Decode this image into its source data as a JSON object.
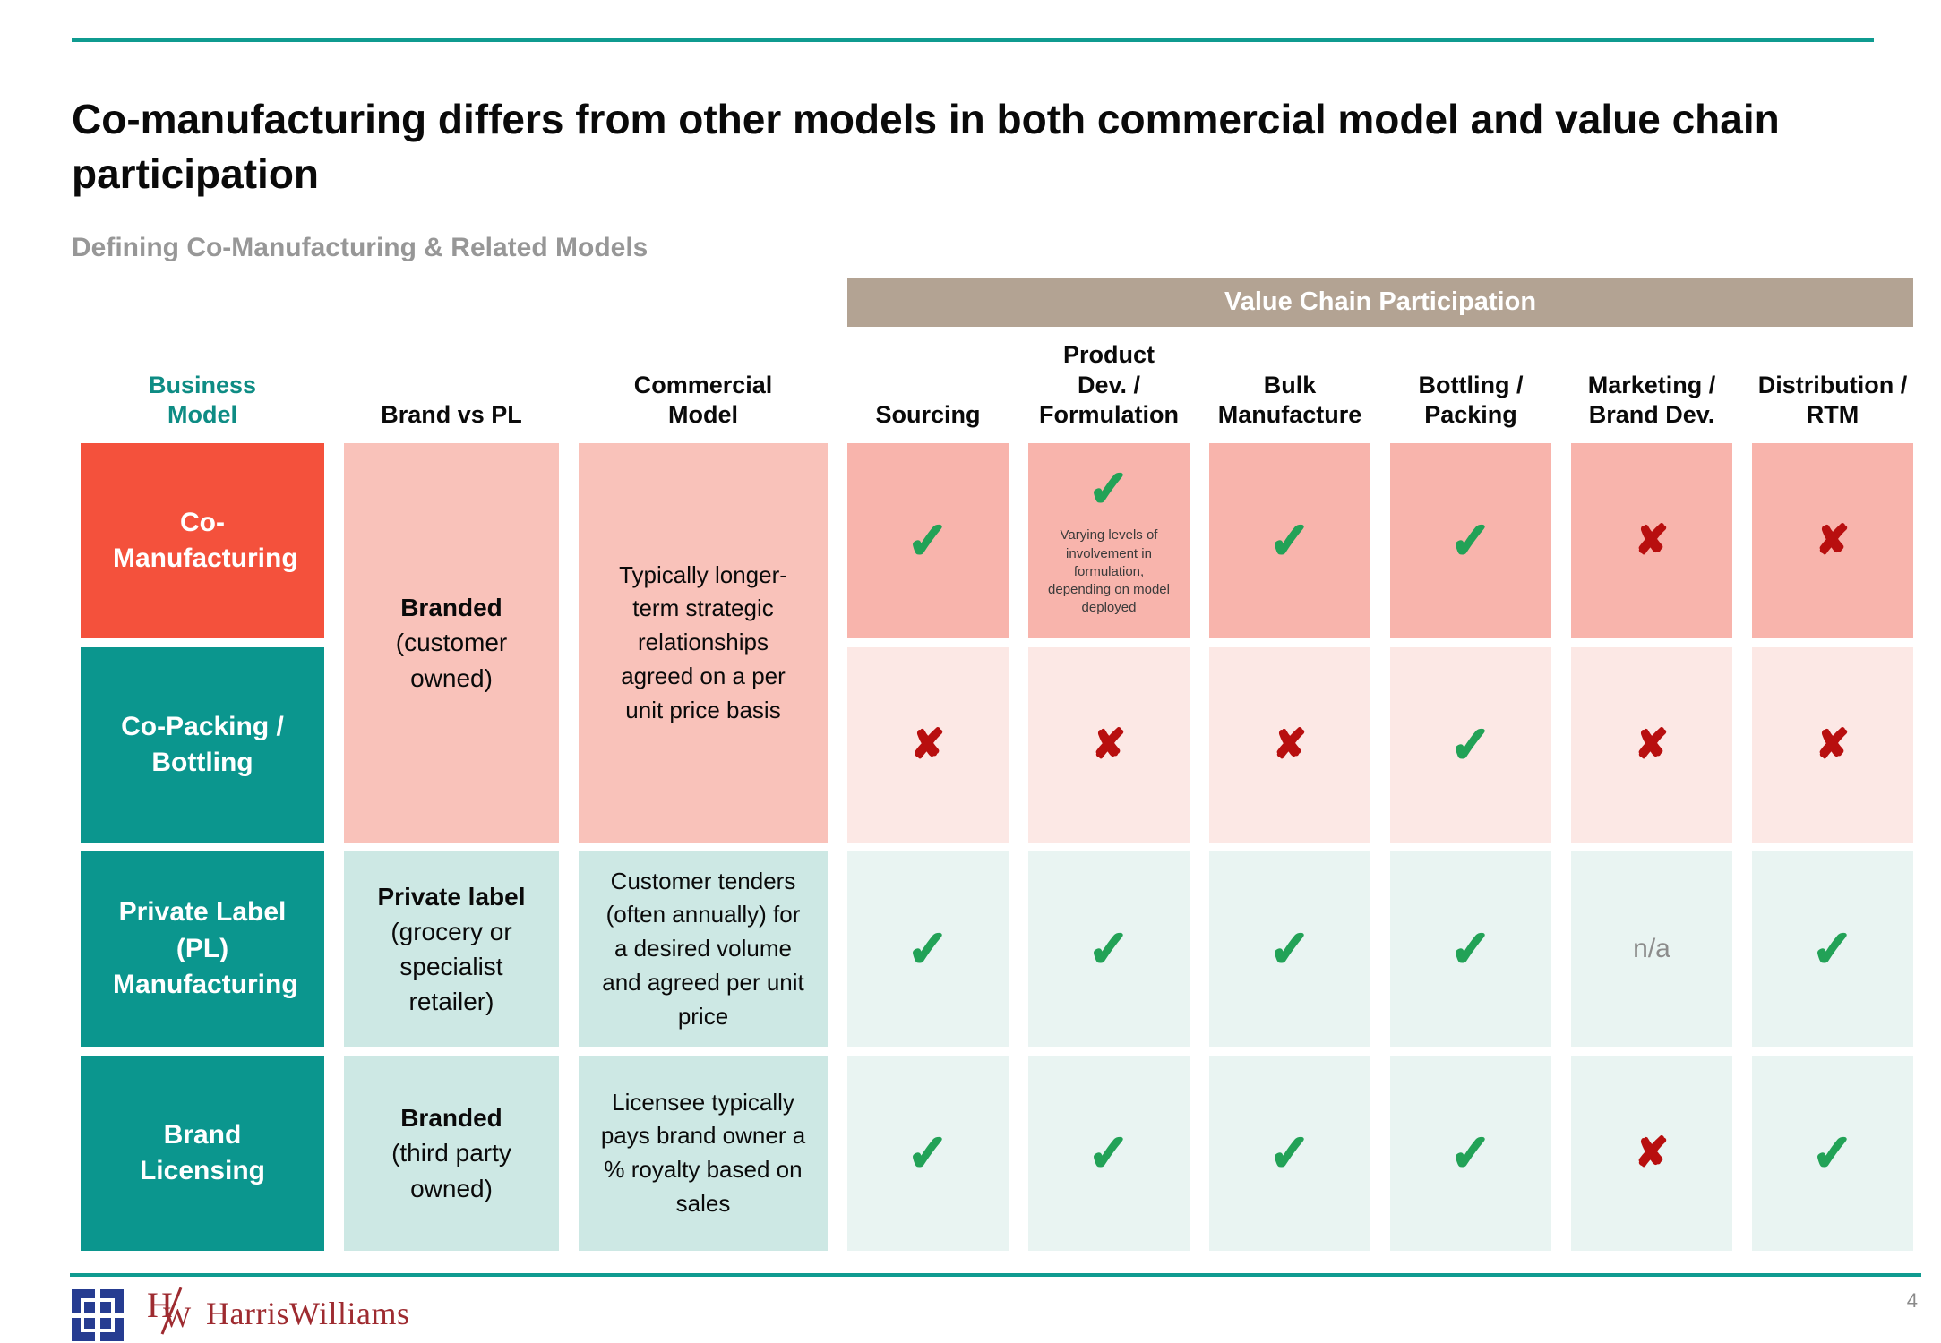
{
  "slide": {
    "title": "Co-manufacturing differs from other models in both commercial model and value chain participation",
    "subtitle": "Defining Co-Manufacturing & Related Models",
    "page_number": "4"
  },
  "band_label": "Value Chain Participation",
  "headers": {
    "business_model": "Business Model",
    "brand_vs_pl": "Brand vs PL",
    "commercial_model": "Commercial Model",
    "sourcing": "Sourcing",
    "product_dev": "Product Dev. / Formulation",
    "bulk_manufacture": "Bulk Manufacture",
    "bottling_packing": "Bottling / Packing",
    "marketing_brand": "Marketing / Brand Dev.",
    "distribution_rtm": "Distribution / RTM"
  },
  "models": {
    "co_manufacturing": "Co-Manufacturing",
    "co_packing": "Co-Packing / Bottling",
    "private_label": "Private Label (PL) Manufacturing",
    "brand_licensing": "Brand Licensing"
  },
  "brand_vs_pl": {
    "rows12_title": "Branded",
    "rows12_sub": "(customer owned)",
    "row3_title": "Private label",
    "row3_sub": "(grocery or specialist retailer)",
    "row4_title": "Branded",
    "row4_sub": "(third party owned)"
  },
  "commercial_model": {
    "rows12": "Typically longer-term strategic relationships agreed on a per unit price basis",
    "row3": "Customer tenders (often annually) for a desired volume and agreed per unit price",
    "row4": "Licensee typically pays brand owner a % royalty based on sales"
  },
  "marks": {
    "co_manufacturing": [
      "✓",
      "✓",
      "✓",
      "✓",
      "✘",
      "✘"
    ],
    "co_packing": [
      "✘",
      "✘",
      "✘",
      "✓",
      "✘",
      "✘"
    ],
    "private_label": [
      "✓",
      "✓",
      "✓",
      "✓",
      "n/a",
      "✓"
    ],
    "brand_licensing": [
      "✓",
      "✓",
      "✓",
      "✓",
      "✘",
      "✓"
    ]
  },
  "notes": {
    "formulation": "Varying levels of involvement in formulation, depending on model deployed"
  },
  "footer": {
    "monogram_h": "H",
    "monogram_w": "W",
    "brand_name": "HarrisWilliams"
  },
  "colors": {
    "accent_teal": "#0f9b90",
    "block_teal": "#0b968e",
    "block_red": "#f4513c",
    "band_tan": "#b3a393",
    "pink_cell": "#f9c2ba",
    "pink_light": "#fce8e5",
    "teal_cell": "#cde8e4",
    "teal_light": "#e9f4f2",
    "check_green": "#22a257",
    "x_red": "#b80f0f",
    "logo_navy": "#263c91",
    "wordmark_red": "#9e2b30"
  }
}
